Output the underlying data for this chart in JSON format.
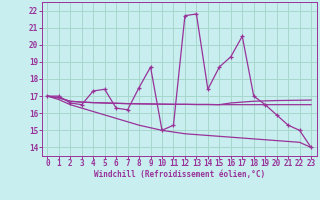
{
  "title": "",
  "xlabel": "Windchill (Refroidissement éolien,°C)",
  "background_color": "#c8eef0",
  "grid_color": "#a8d8cc",
  "line_color": "#993399",
  "x_ticks": [
    0,
    1,
    2,
    3,
    4,
    5,
    6,
    7,
    8,
    9,
    10,
    11,
    12,
    13,
    14,
    15,
    16,
    17,
    18,
    19,
    20,
    21,
    22,
    23
  ],
  "y_ticks": [
    14,
    15,
    16,
    17,
    18,
    19,
    20,
    21,
    22
  ],
  "ylim": [
    13.5,
    22.5
  ],
  "xlim": [
    -0.5,
    23.5
  ],
  "series1": [
    17.0,
    17.0,
    16.6,
    16.5,
    17.3,
    17.4,
    16.3,
    16.2,
    17.5,
    18.7,
    15.0,
    15.3,
    21.7,
    21.8,
    17.4,
    18.7,
    19.3,
    20.5,
    17.0,
    16.5,
    15.9,
    15.3,
    15.0,
    14.0
  ],
  "series2": [
    17.0,
    16.9,
    16.7,
    16.65,
    16.62,
    16.6,
    16.58,
    16.56,
    16.55,
    16.54,
    16.53,
    16.52,
    16.52,
    16.51,
    16.51,
    16.5,
    16.5,
    16.5,
    16.5,
    16.5,
    16.5,
    16.5,
    16.5,
    16.5
  ],
  "series3": [
    17.0,
    16.9,
    16.7,
    16.65,
    16.62,
    16.6,
    16.58,
    16.56,
    16.55,
    16.54,
    16.53,
    16.52,
    16.52,
    16.51,
    16.51,
    16.5,
    16.6,
    16.65,
    16.7,
    16.72,
    16.74,
    16.75,
    16.76,
    16.77
  ],
  "series4": [
    17.0,
    16.8,
    16.5,
    16.3,
    16.1,
    15.9,
    15.7,
    15.5,
    15.3,
    15.15,
    15.0,
    14.9,
    14.8,
    14.75,
    14.7,
    14.65,
    14.6,
    14.55,
    14.5,
    14.45,
    14.4,
    14.35,
    14.3,
    14.0
  ]
}
